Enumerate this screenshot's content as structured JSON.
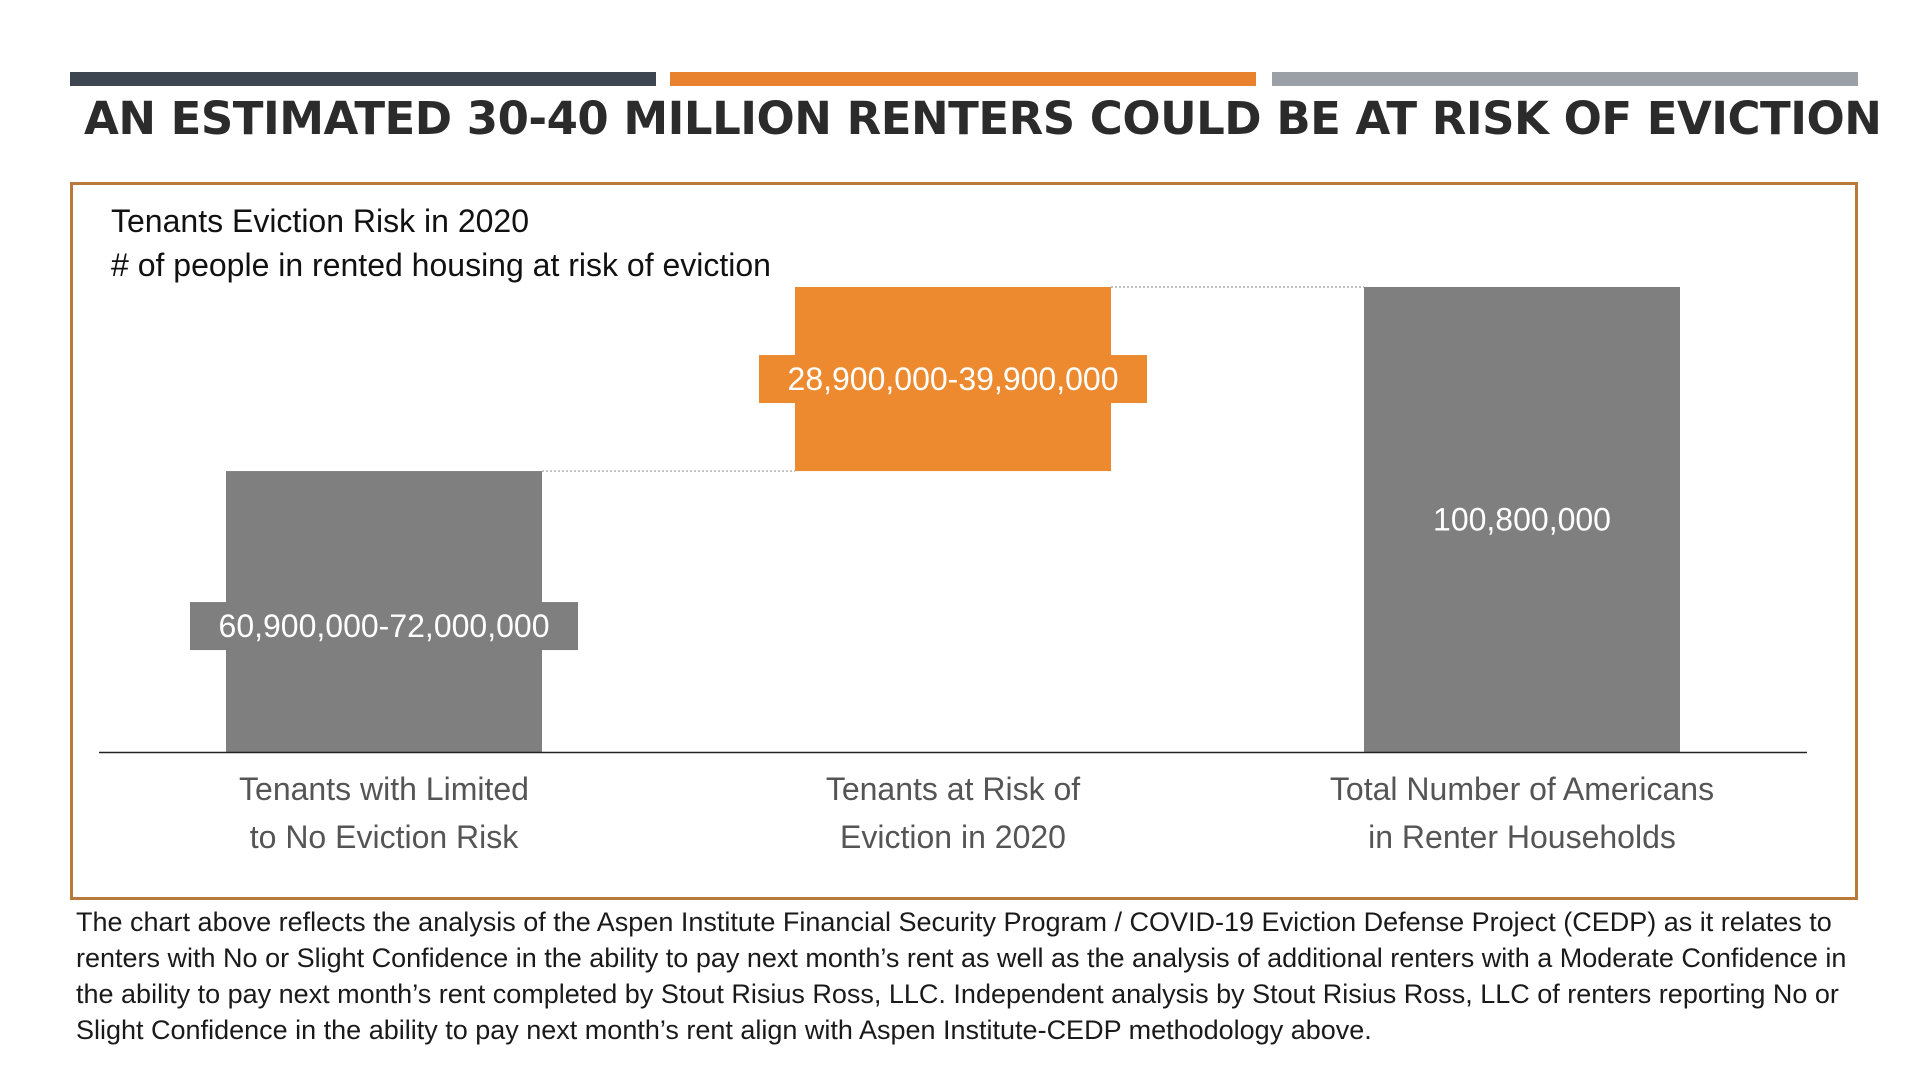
{
  "headline": "AN ESTIMATED 30-40 MILLION RENTERS COULD BE AT RISK OF EVICTION",
  "colors": {
    "bar_dark": "#3d4650",
    "bar_orange": "#e8822e",
    "bar_gray": "#9aa0a6",
    "border": "#b8793b",
    "total_bar": "#7f7f7f",
    "risk_bar": "#ed8a2f"
  },
  "chart_data": {
    "type": "bar",
    "subtype": "waterfall",
    "title": "Tenants Eviction Risk in 2020",
    "subtitle": "# of people in rented housing at risk of eviction",
    "categories": [
      "Tenants with Limited to No Eviction Risk",
      "Tenants at Risk of Eviction in 2020",
      "Total Number of Americans in Renter Households"
    ],
    "category_lines": [
      [
        "Tenants with Limited",
        "to No Eviction Risk"
      ],
      [
        "Tenants at Risk of",
        "Eviction in 2020"
      ],
      [
        "Total Number of Americans",
        "in Renter Households"
      ]
    ],
    "series": [
      {
        "name": "Limited to No Eviction Risk",
        "start": 0,
        "end": 60900000,
        "label": "60,900,000-72,000,000"
      },
      {
        "name": "At Risk of Eviction",
        "start": 60900000,
        "end": 100800000,
        "label": "28,900,000-39,900,000"
      },
      {
        "name": "Total Renters",
        "start": 0,
        "end": 100800000,
        "label": "100,800,000"
      }
    ],
    "ylim": [
      0,
      100800000
    ],
    "xlabel": "",
    "ylabel": "",
    "grid": false,
    "legend": "none"
  },
  "footnote": "The chart above reflects the analysis of the Aspen Institute Financial Security Program / COVID-19 Eviction Defense Project (CEDP) as it relates to renters with No or Slight Confidence in the ability to pay next month’s rent as well as the analysis of additional renters with a Moderate Confidence in the ability to pay next month’s rent completed by Stout Risius Ross, LLC. Independent analysis by Stout Risius Ross, LLC of renters reporting No or Slight Confidence in the ability to pay next month’s rent align with Aspen Institute-CEDP methodology above."
}
